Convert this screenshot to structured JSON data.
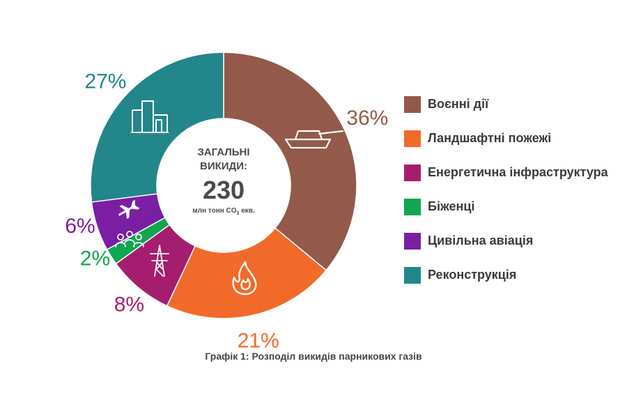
{
  "chart_data": {
    "type": "pie",
    "donut": true,
    "title": "Графік 1: Розподіл викидів парникових газів",
    "center": {
      "line1": "ЗАГАЛЬНІ",
      "line2": "ВИКИДИ:",
      "value": "230",
      "unit_prefix": "млн тонн CO",
      "unit_sub": "2",
      "unit_suffix": " екв."
    },
    "legend_position": "right",
    "slices": [
      {
        "name": "Воєнні дії",
        "value": 36,
        "label": "36%",
        "color": "#93594a",
        "icon": "tank-icon"
      },
      {
        "name": "Ландшафтні пожежі",
        "value": 21,
        "label": "21%",
        "color": "#f26a2a",
        "icon": "fire-icon"
      },
      {
        "name": "Енергетична інфраструктура",
        "value": 8,
        "label": "8%",
        "color": "#a51d6e",
        "icon": "power-tower-icon"
      },
      {
        "name": "Біженці",
        "value": 2,
        "label": "2%",
        "color": "#11a650",
        "icon": "people-icon"
      },
      {
        "name": "Цивільна авіація",
        "value": 6,
        "label": "6%",
        "color": "#7a1ea3",
        "icon": "plane-icon"
      },
      {
        "name": "Реконструкція",
        "value": 27,
        "label": "27%",
        "color": "#23868a",
        "icon": "buildings-icon"
      }
    ]
  }
}
